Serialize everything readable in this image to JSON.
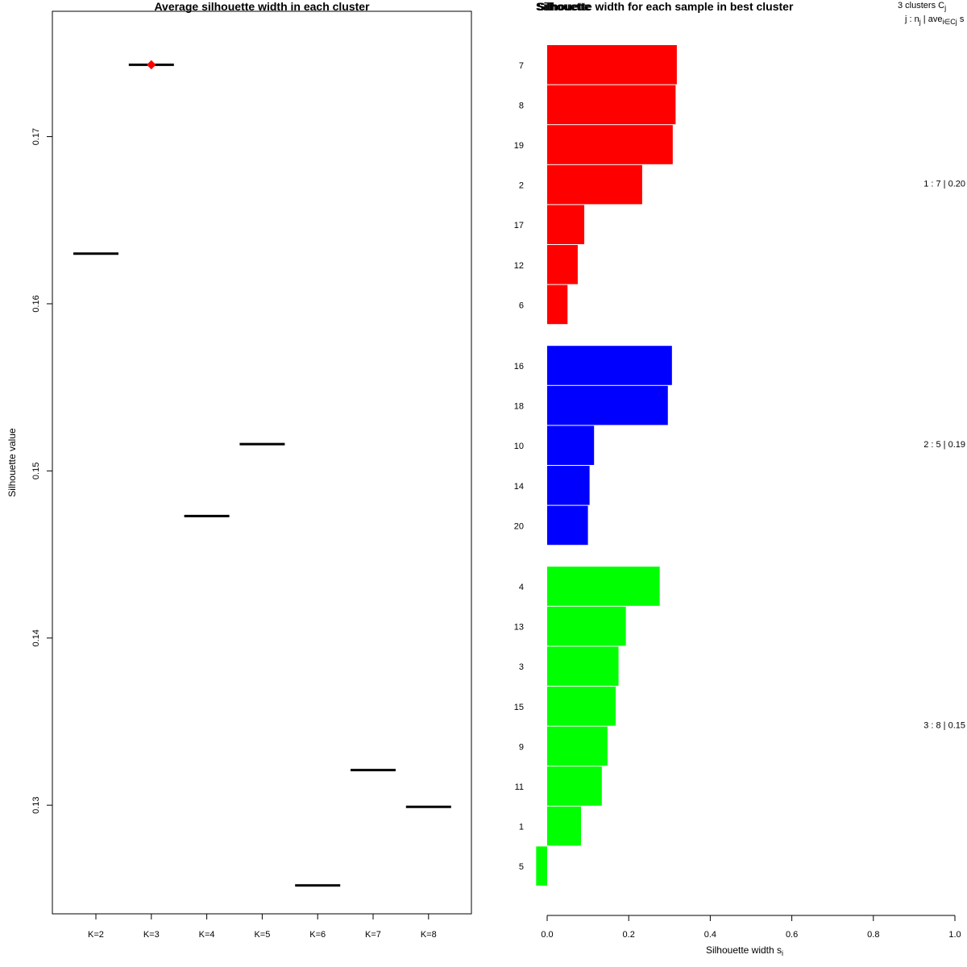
{
  "chart_data": [
    {
      "type": "scatter",
      "title": "Average silhouette width in each cluster",
      "xlabel": "",
      "ylabel": "Silhouette value",
      "categories": [
        "K=2",
        "K=3",
        "K=4",
        "K=5",
        "K=6",
        "K=7",
        "K=8"
      ],
      "values": [
        0.163,
        0.1743,
        0.1473,
        0.1516,
        0.1252,
        0.1321,
        0.1299
      ],
      "best_index": 1,
      "best_color": "#ff0000",
      "ylim": [
        0.1235,
        0.1775
      ],
      "yticks": [
        0.13,
        0.14,
        0.15,
        0.16,
        0.17
      ],
      "ytick_labels": [
        "0.13",
        "0.14",
        "0.15",
        "0.16",
        "0.17"
      ]
    },
    {
      "type": "bar",
      "title": "Silhouette width for each sample in best cluster",
      "title_overlap": "Silhouette",
      "xlabel": "Silhouette width s",
      "xlabel_sub": "i",
      "xlim": [
        0,
        1
      ],
      "xticks": [
        "0.0",
        "0.2",
        "0.4",
        "0.6",
        "0.8",
        "1.0"
      ],
      "legend_header": {
        "line1": "3  clusters  C",
        "line1_sub": "j",
        "line2_a": "j :  n",
        "line2_sub_a": "j",
        "line2_b": " | ave",
        "line2_sub_b": "i∈Cj",
        "line2_c": "  s"
      },
      "clusters": [
        {
          "id": 1,
          "color": "#ff0000",
          "n": 7,
          "avg": 0.2,
          "summary": "1 :  7  |  0.20",
          "samples": [
            "7",
            "8",
            "19",
            "2",
            "17",
            "12",
            "6"
          ],
          "widths": [
            0.318,
            0.315,
            0.308,
            0.233,
            0.091,
            0.075,
            0.05
          ]
        },
        {
          "id": 2,
          "color": "#0000ff",
          "n": 5,
          "avg": 0.19,
          "summary": "2 :  5  |  0.19",
          "samples": [
            "16",
            "18",
            "10",
            "14",
            "20"
          ],
          "widths": [
            0.306,
            0.296,
            0.115,
            0.104,
            0.1
          ]
        },
        {
          "id": 3,
          "color": "#00ff00",
          "n": 8,
          "avg": 0.15,
          "summary": "3 :  8  |  0.15",
          "samples": [
            "4",
            "13",
            "3",
            "15",
            "9",
            "11",
            "1",
            "5"
          ],
          "widths": [
            0.276,
            0.193,
            0.175,
            0.168,
            0.148,
            0.134,
            0.083,
            -0.027
          ]
        }
      ]
    }
  ]
}
